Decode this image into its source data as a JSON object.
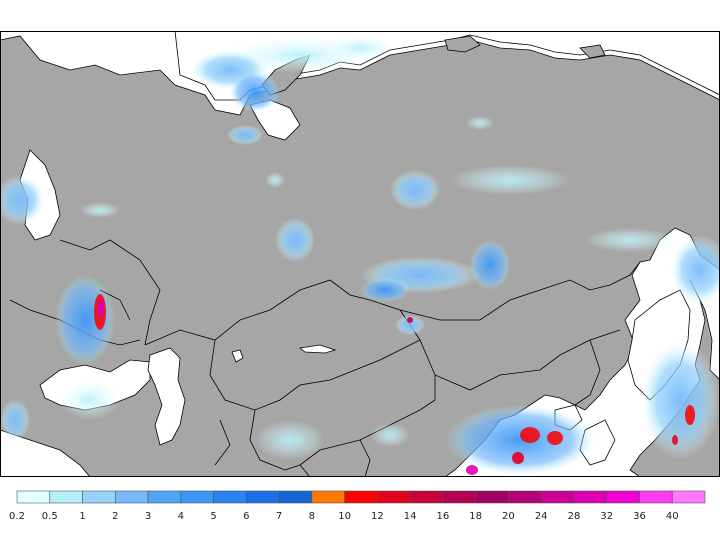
{
  "map": {
    "land_color": "#a6a6a6",
    "water_color": "#ffffff",
    "border_color": "#000000"
  },
  "legend": {
    "labels": [
      "0.2",
      "0.5",
      "1",
      "2",
      "3",
      "4",
      "5",
      "6",
      "7",
      "8",
      "10",
      "12",
      "14",
      "16",
      "18",
      "20",
      "24",
      "28",
      "32",
      "36",
      "40"
    ],
    "colors": [
      "#e1ffff",
      "#b4f0fa",
      "#96d2fa",
      "#78b9fa",
      "#50a5f5",
      "#3c97f5",
      "#2882f0",
      "#1e6eeb",
      "#1464d2",
      "#ff7800",
      "#fa0000",
      "#e1001e",
      "#c8003c",
      "#b40050",
      "#a00064",
      "#b4007a",
      "#c80096",
      "#dc00b4",
      "#f000d2",
      "#ff3cf0",
      "#ff78ff"
    ]
  }
}
